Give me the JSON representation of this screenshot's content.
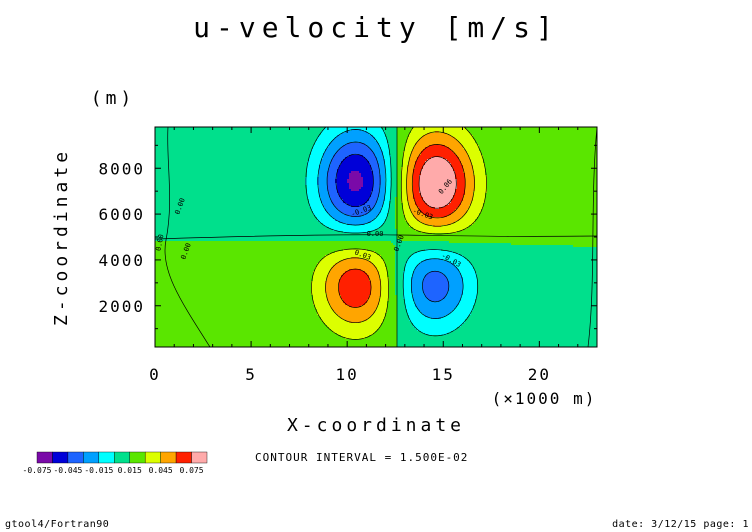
{
  "chart_data": {
    "type": "heatmap",
    "title": "u-velocity [m/s]",
    "xlabel": "X-coordinate",
    "x_unit_label": "(×1000 m)",
    "ylabel": "Z-coordinate",
    "y_unit_label": "(m)",
    "xlim": [
      0,
      23
    ],
    "ylim": [
      200,
      9800
    ],
    "x_ticks": [
      0,
      5,
      10,
      15,
      20
    ],
    "x_tick_labels": [
      "0",
      "5",
      "10",
      "15",
      "20"
    ],
    "y_ticks": [
      2000,
      4000,
      6000,
      8000
    ],
    "y_tick_labels": [
      "2000",
      "4000",
      "6000",
      "8000"
    ],
    "contour_interval_text": "CONTOUR INTERVAL = 1.500E-02",
    "contour_interval": 0.015,
    "levels": [
      -0.075,
      -0.06,
      -0.045,
      -0.03,
      -0.015,
      0,
      0.015,
      0.03,
      0.045,
      0.06,
      0.075
    ],
    "colorbar": {
      "colors": [
        "#7a0aa8",
        "#0000d8",
        "#1e64ff",
        "#00a0ff",
        "#00ffff",
        "#00e08c",
        "#5ae600",
        "#dcff00",
        "#ffa500",
        "#ff2000",
        "#ffaaaa"
      ],
      "labels": [
        "-0.075",
        "-0.045",
        "-0.015",
        "0.015",
        "0.045",
        "0.075"
      ]
    },
    "extrema": [
      {
        "x": 10.5,
        "z": 7400,
        "value": -0.08,
        "kind": "min"
      },
      {
        "x": 14.6,
        "z": 7300,
        "value": 0.08,
        "kind": "max"
      },
      {
        "x": 10.5,
        "z": 2900,
        "value": 0.058,
        "kind": "max"
      },
      {
        "x": 14.5,
        "z": 3000,
        "value": -0.055,
        "kind": "min"
      }
    ],
    "contour_labels": [
      "0.00",
      "0.00",
      "0.00",
      "0.00",
      "0.00",
      "-0.03",
      "-0.03",
      "0.06",
      "0.03",
      "-0.03"
    ]
  },
  "footer": {
    "left": "gtool4/Fortran90",
    "right": "date: 3/12/15 page: 1"
  }
}
